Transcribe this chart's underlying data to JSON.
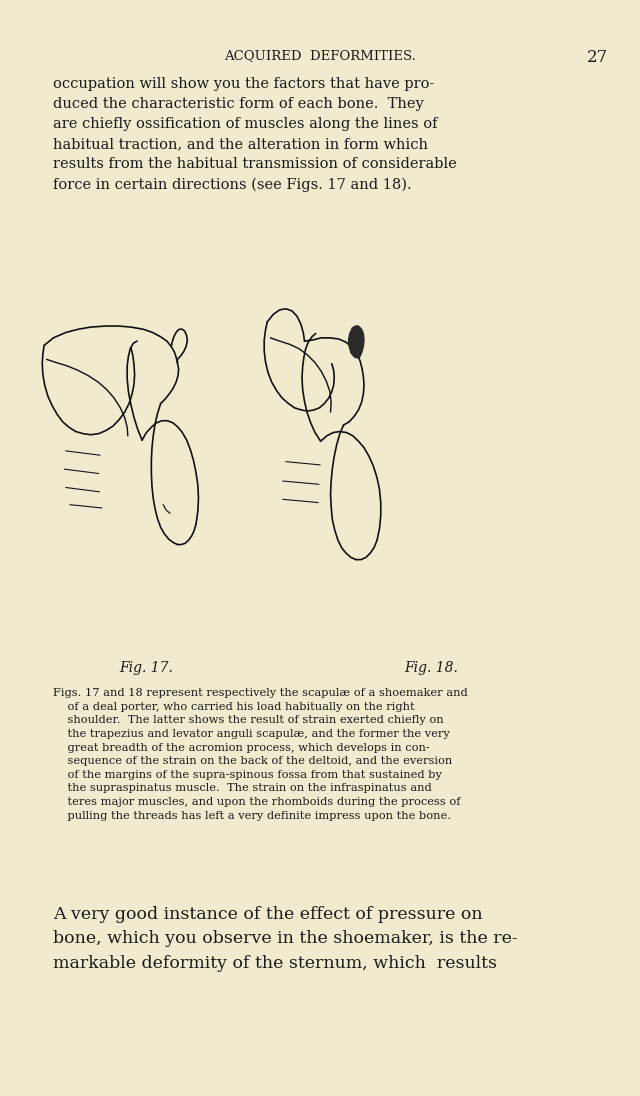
{
  "bg_color": "#f0ebcf",
  "text_color": "#1a1a1a",
  "page_width": 8.0,
  "page_height": 13.98,
  "header_text": "ACQUIRED  DEFORMITIES.",
  "page_number": "27",
  "body_text_1": "occupation will show you the factors that have pro-\nduced the characteristic form of each bone.  They\nare chiefly ossification of muscles along the lines of\nhabitual traction, and the alteration in form which\nresults from the habitual transmission of considerable\nforce in certain directions (see Figs. 17 and 18).",
  "fig17_label": "Fig. 17.",
  "fig18_label": "Fig. 18.",
  "caption_line1": "Figs. 17 and 18 represent respectively the scapulæ of a shoemaker and",
  "caption_line2": "    of a deal porter, who carried his load habitually on the right",
  "caption_line3": "    shoulder.  The latter shows the result of strain exerted chiefly on",
  "caption_line4": "    the trapezius and levator anguli scapulæ, and the former the very",
  "caption_line5": "    great breadth of the acromion process, which develops in con-",
  "caption_line6": "    sequence of the strain on the back of the deltoid, and the eversion",
  "caption_line7": "    of the margins of the supra-spinous fossa from that sustained by",
  "caption_line8": "    the supraspinatus muscle.  The strain on the infraspinatus and",
  "caption_line9": "    teres major muscles, and upon the rhomboids during the process of",
  "caption_line10": "    pulling the threads has left a very definite impress upon the bone.",
  "body_text_2": "A very good instance of the effect of pressure on\nbone, which you observe in the shoemaker, is the re-\nmarkable deformity of the sternum, which  results"
}
